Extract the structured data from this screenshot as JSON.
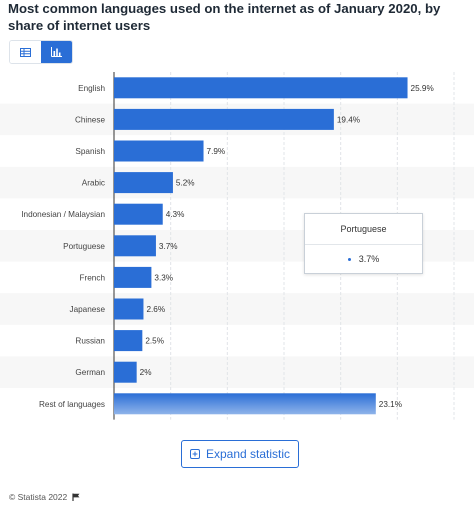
{
  "title": "Most common languages used on the internet as of January 2020, by share of internet users",
  "toggle": {
    "table_icon": "table-icon",
    "chart_icon": "bar-chart-icon",
    "active": "chart"
  },
  "colors": {
    "bar": "#2a6ed6",
    "bar_last_top": "#2a6ed6",
    "bar_last_bottom": "#8fb4ea",
    "accent": "#2a6ed6"
  },
  "chart_data": {
    "type": "bar",
    "orientation": "horizontal",
    "categories": [
      "English",
      "Chinese",
      "Spanish",
      "Arabic",
      "Indonesian / Malaysian",
      "Portuguese",
      "French",
      "Japanese",
      "Russian",
      "German",
      "Rest of languages"
    ],
    "values": [
      25.9,
      19.4,
      7.9,
      5.2,
      4.3,
      3.7,
      3.3,
      2.6,
      2.5,
      2,
      23.1
    ],
    "value_labels": [
      "25.9%",
      "19.4%",
      "7.9%",
      "5.2%",
      "4.3%",
      "3.7%",
      "3.3%",
      "2.6%",
      "2.5%",
      "2%",
      "23.1%"
    ],
    "xlim": [
      0,
      30
    ],
    "grid": true,
    "unit": "%"
  },
  "tooltip": {
    "title": "Portuguese",
    "value": "3.7%"
  },
  "expand_button": {
    "label": "Expand statistic",
    "icon": "expand-icon"
  },
  "footer": {
    "text": "© Statista 2022",
    "icon": "flag-icon"
  }
}
